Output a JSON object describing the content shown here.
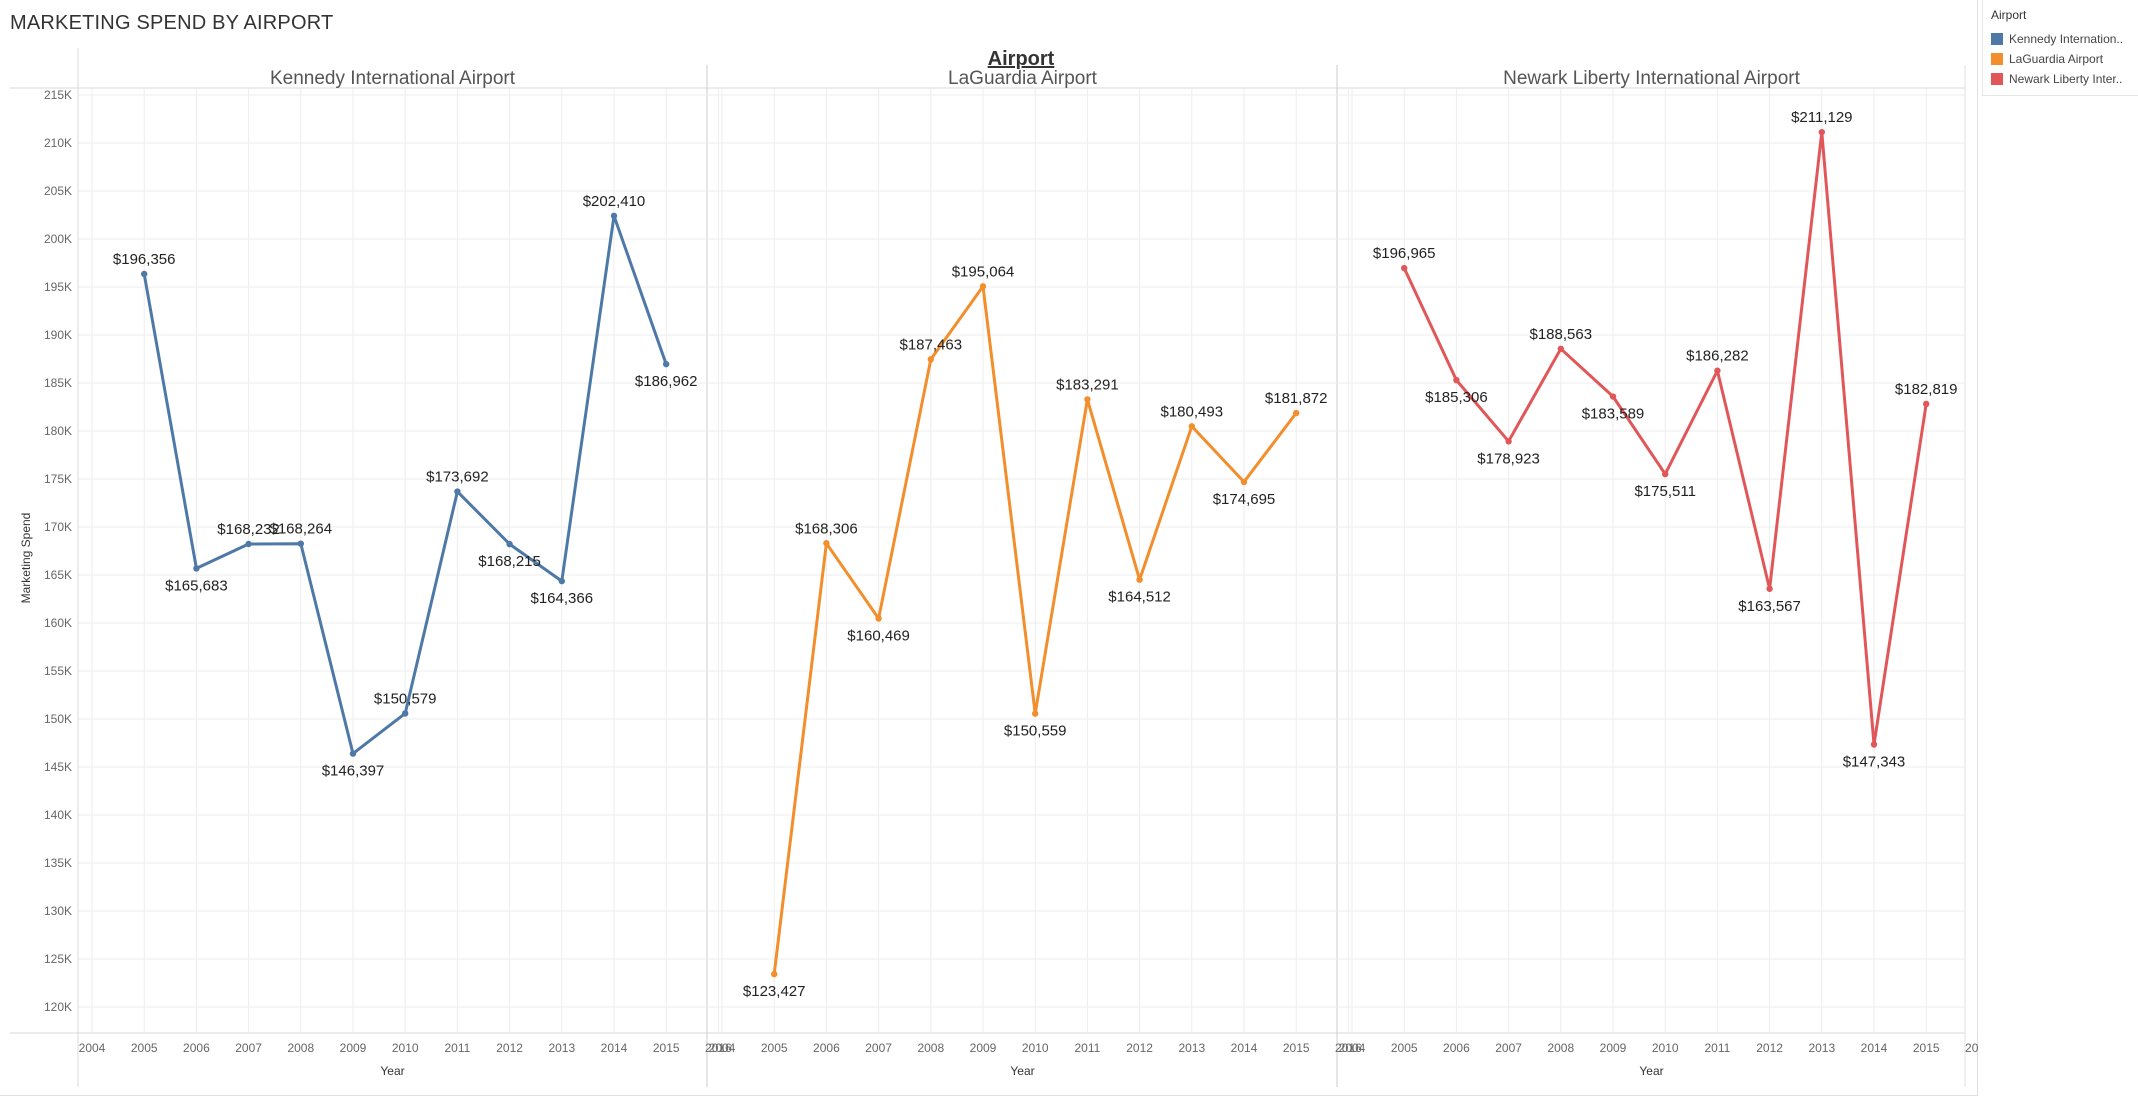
{
  "title": "MARKETING SPEND BY AIRPORT",
  "colors": {
    "Kennedy International Airport": "#4e79a7",
    "LaGuardia Airport": "#f28e2b",
    "Newark Liberty International Airport": "#e15759",
    "grid": "#ededed",
    "axis_text": "#666666",
    "label_text": "#222222"
  },
  "legend": {
    "title": "Airport",
    "items": [
      {
        "label": "Kennedy Internation..",
        "color": "#4e79a7"
      },
      {
        "label": "LaGuardia Airport",
        "color": "#f28e2b"
      },
      {
        "label": "Newark Liberty Inter..",
        "color": "#e15759"
      }
    ]
  },
  "chart_data": {
    "type": "line",
    "title": "MARKETING SPEND BY AIRPORT",
    "column_header": "Airport",
    "xlabel": "Year",
    "ylabel": "Marketing Spend",
    "ylim": [
      118000,
      216000
    ],
    "yticks": [
      120000,
      125000,
      130000,
      135000,
      140000,
      145000,
      150000,
      155000,
      160000,
      165000,
      170000,
      175000,
      180000,
      185000,
      190000,
      195000,
      200000,
      205000,
      210000,
      215000
    ],
    "ytick_labels": [
      "120K",
      "125K",
      "130K",
      "135K",
      "140K",
      "145K",
      "150K",
      "155K",
      "160K",
      "165K",
      "170K",
      "175K",
      "180K",
      "185K",
      "190K",
      "195K",
      "200K",
      "205K",
      "210K",
      "215K"
    ],
    "x_ticks": [
      2004,
      2005,
      2006,
      2007,
      2008,
      2009,
      2010,
      2011,
      2012,
      2013,
      2014,
      2015,
      2016
    ],
    "grid": true,
    "legend_position": "top-right",
    "panels": [
      {
        "name": "Kennedy International Airport",
        "x": [
          2005,
          2006,
          2007,
          2008,
          2009,
          2010,
          2011,
          2012,
          2013,
          2014,
          2015
        ],
        "values": [
          196356,
          165683,
          168232,
          168264,
          146397,
          150579,
          173692,
          168215,
          164366,
          202410,
          186962
        ],
        "labels": [
          "$196,356",
          "$165,683",
          "$168,232",
          "$168,264",
          "$146,397",
          "$150,579",
          "$173,692",
          "$168,215",
          "$164,366",
          "$202,410",
          "$186,962"
        ]
      },
      {
        "name": "LaGuardia Airport",
        "x": [
          2005,
          2006,
          2007,
          2008,
          2009,
          2010,
          2011,
          2012,
          2013,
          2014,
          2015
        ],
        "values": [
          123427,
          168306,
          160469,
          187463,
          195064,
          150559,
          183291,
          164512,
          180493,
          174695,
          181872
        ],
        "labels": [
          "$123,427",
          "$168,306",
          "$160,469",
          "$187,463",
          "$195,064",
          "$150,559",
          "$183,291",
          "$164,512",
          "$180,493",
          "$174,695",
          "$181,872"
        ]
      },
      {
        "name": "Newark Liberty International Airport",
        "x": [
          2005,
          2006,
          2007,
          2008,
          2009,
          2010,
          2011,
          2012,
          2013,
          2014,
          2015
        ],
        "values": [
          196965,
          185306,
          178923,
          188563,
          183589,
          175511,
          186282,
          163567,
          211129,
          147343,
          182819
        ],
        "labels": [
          "$196,965",
          "$185,306",
          "$178,923",
          "$188,563",
          "$183,589",
          "$175,511",
          "$186,282",
          "$163,567",
          "$211,129",
          "$147,343",
          "$182,819"
        ]
      }
    ]
  }
}
